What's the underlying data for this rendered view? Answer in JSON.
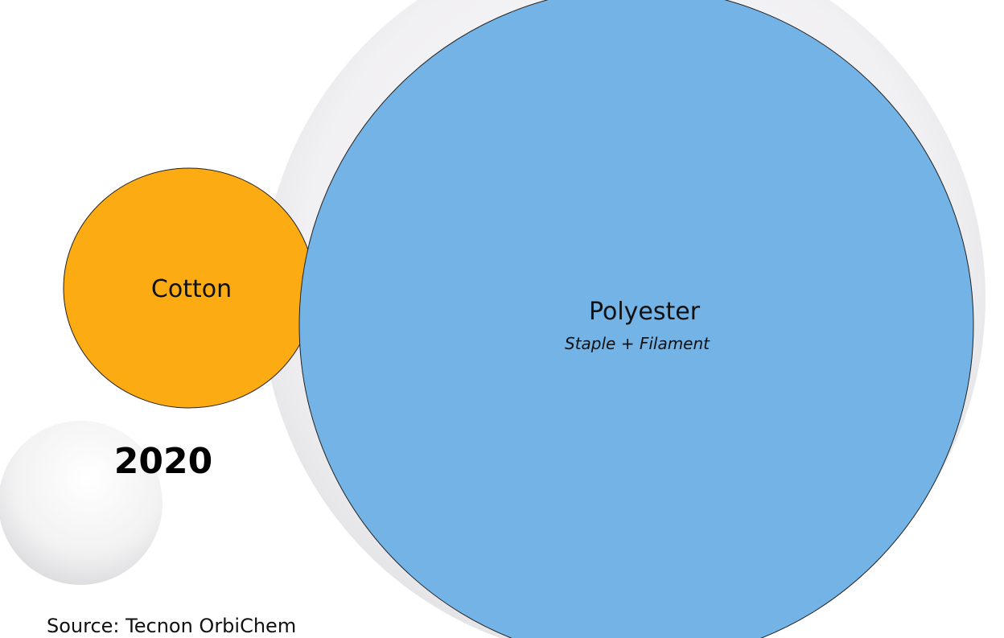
{
  "nodes": [
    {
      "label": "Cotton"
    },
    {
      "label": "Polyester",
      "sublabel": "Staple + Filament"
    }
  ],
  "year": "2020",
  "source": "Source: Tecnon OrbiChem"
}
